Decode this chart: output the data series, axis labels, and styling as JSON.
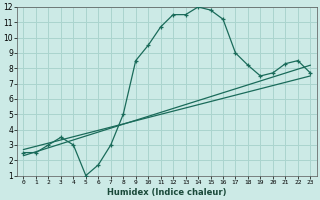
{
  "xlabel": "Humidex (Indice chaleur)",
  "bg_color": "#cceae6",
  "grid_color": "#aad4ce",
  "line_color": "#1a6b5a",
  "curve_x": [
    0,
    1,
    2,
    3,
    4,
    5,
    6,
    7,
    8,
    9,
    10,
    11,
    12,
    13,
    14,
    15,
    16,
    17,
    18,
    19,
    20,
    21,
    22,
    23
  ],
  "curve_y": [
    2.5,
    2.5,
    3.0,
    3.5,
    3.0,
    1.0,
    1.7,
    3.0,
    5.0,
    8.5,
    9.5,
    10.7,
    11.5,
    11.5,
    12.0,
    11.8,
    11.2,
    9.0,
    8.2,
    7.5,
    7.7,
    8.3,
    8.5,
    7.7
  ],
  "trend1_x": [
    0,
    23
  ],
  "trend1_y": [
    2.3,
    8.2
  ],
  "trend2_x": [
    0,
    23
  ],
  "trend2_y": [
    2.7,
    7.5
  ],
  "xlim": [
    -0.5,
    23.5
  ],
  "ylim": [
    1,
    12
  ],
  "xticks": [
    0,
    1,
    2,
    3,
    4,
    5,
    6,
    7,
    8,
    9,
    10,
    11,
    12,
    13,
    14,
    15,
    16,
    17,
    18,
    19,
    20,
    21,
    22,
    23
  ],
  "yticks": [
    1,
    2,
    3,
    4,
    5,
    6,
    7,
    8,
    9,
    10,
    11,
    12
  ]
}
